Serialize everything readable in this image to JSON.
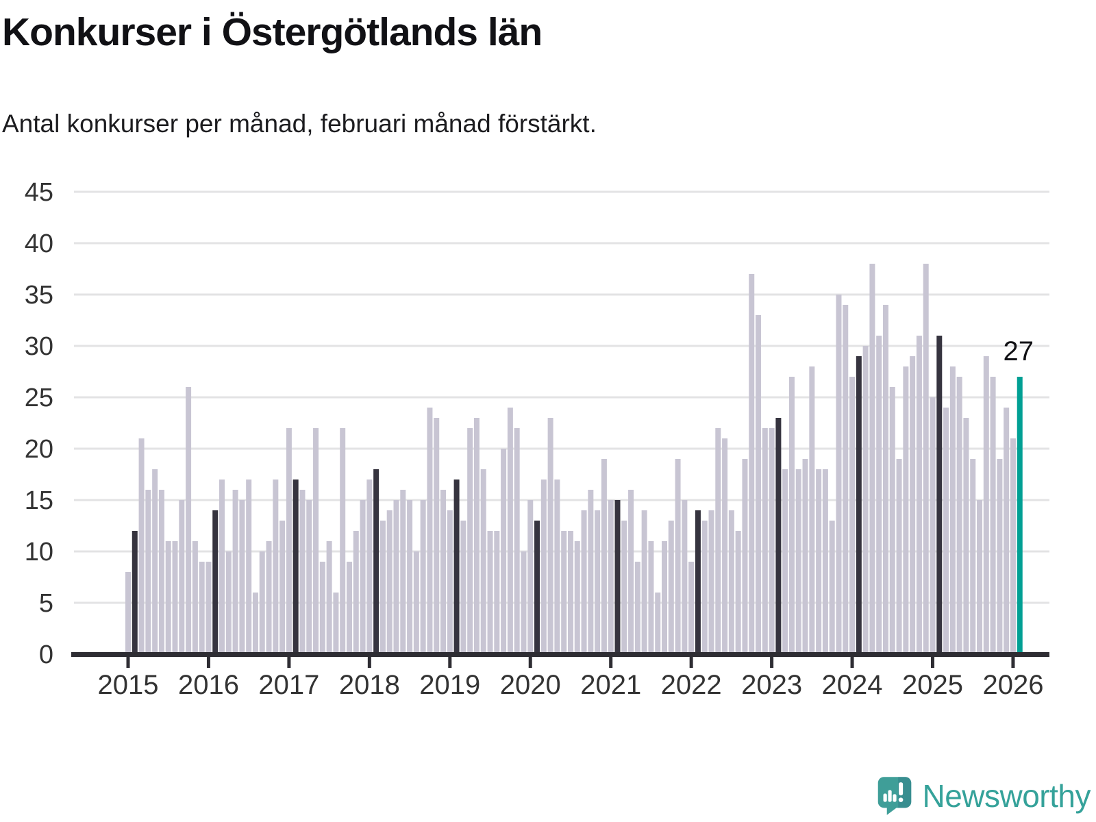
{
  "header": {
    "title": "Konkurser i Östergötlands län",
    "subtitle": "Antal konkurser per månad, februari månad förstärkt."
  },
  "chart_data": {
    "type": "bar",
    "title": "Konkurser i Östergötlands län",
    "xlabel": "",
    "ylabel": "",
    "ylim": [
      0,
      45
    ],
    "yticks": [
      0,
      5,
      10,
      15,
      20,
      25,
      30,
      35,
      40,
      45
    ],
    "grid": "horizontal",
    "legend_position": "none",
    "highlight_rule": "February of each year is dark; final bar (Feb 2026) is teal",
    "x_years": [
      2015,
      2016,
      2017,
      2018,
      2019,
      2020,
      2021,
      2022,
      2023,
      2024,
      2025,
      2026
    ],
    "start_month": "2015-01",
    "end_month": "2026-02",
    "series": [
      {
        "year": 2015,
        "values": [
          8,
          12,
          21,
          16,
          18,
          16,
          11,
          11,
          15,
          26,
          11,
          9
        ]
      },
      {
        "year": 2016,
        "values": [
          9,
          14,
          17,
          10,
          16,
          15,
          17,
          6,
          10,
          11,
          17,
          13
        ]
      },
      {
        "year": 2017,
        "values": [
          22,
          17,
          16,
          15,
          22,
          9,
          11,
          6,
          22,
          9,
          12,
          15
        ]
      },
      {
        "year": 2018,
        "values": [
          17,
          18,
          13,
          14,
          15,
          16,
          15,
          10,
          15,
          24,
          23,
          16
        ]
      },
      {
        "year": 2019,
        "values": [
          14,
          17,
          13,
          22,
          23,
          18,
          12,
          12,
          20,
          24,
          22,
          10
        ]
      },
      {
        "year": 2020,
        "values": [
          15,
          13,
          17,
          23,
          17,
          12,
          12,
          11,
          14,
          16,
          14,
          19
        ]
      },
      {
        "year": 2021,
        "values": [
          15,
          15,
          13,
          16,
          9,
          14,
          11,
          6,
          11,
          13,
          19,
          15
        ]
      },
      {
        "year": 2022,
        "values": [
          9,
          14,
          13,
          14,
          22,
          21,
          14,
          12,
          19,
          37,
          33,
          22
        ]
      },
      {
        "year": 2023,
        "values": [
          22,
          23,
          18,
          27,
          18,
          19,
          28,
          18,
          18,
          13,
          35,
          34
        ]
      },
      {
        "year": 2024,
        "values": [
          27,
          29,
          30,
          38,
          31,
          34,
          26,
          19,
          28,
          29,
          31,
          38
        ]
      },
      {
        "year": 2025,
        "values": [
          25,
          31,
          24,
          28,
          27,
          23,
          19,
          15,
          29,
          27,
          19,
          24
        ]
      },
      {
        "year": 2026,
        "values": [
          21,
          27
        ]
      }
    ],
    "last_value_label": "27",
    "colors": {
      "bar": "#c8c5d3",
      "february_bar": "#36343f",
      "highlight_bar": "#00a094",
      "gridline": "#e3e3e4",
      "axis": "#2e2d33",
      "tick_label": "#333333",
      "annotation": "#111115"
    }
  },
  "branding": {
    "name": "Newsworthy",
    "logo_color": "#3f9e98",
    "text_color": "#35a29a"
  }
}
